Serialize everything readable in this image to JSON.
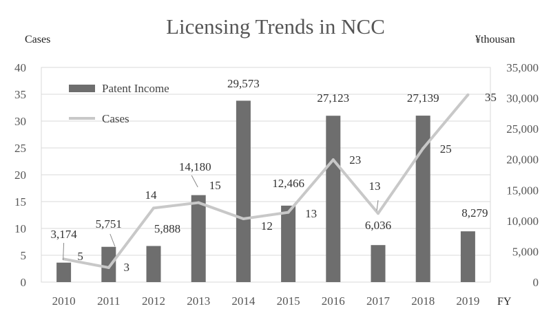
{
  "chart_data": {
    "type": "bar",
    "title": "Licensing Trends in NCC",
    "left_unit": "Cases",
    "right_unit": "¥thousan",
    "x_unit": "FY",
    "categories": [
      "2010",
      "2011",
      "2012",
      "2013",
      "2014",
      "2015",
      "2016",
      "2017",
      "2018",
      "2019"
    ],
    "left_axis": {
      "range": [
        0,
        40
      ],
      "ticks": [
        "0",
        "5",
        "10",
        "15",
        "20",
        "25",
        "30",
        "35",
        "40"
      ]
    },
    "right_axis": {
      "range": [
        0,
        35000
      ],
      "ticks": [
        "0",
        "5,000",
        "10,000",
        "15,000",
        "20,000",
        "25,000",
        "30,000",
        "35,000"
      ]
    },
    "grid": true,
    "legend_position": "top-left",
    "series": [
      {
        "name": "Patent Income",
        "type": "bar",
        "axis": "right",
        "color": "#6e6e6e",
        "values": [
          3174,
          5751,
          5888,
          14180,
          29573,
          12466,
          27123,
          6036,
          27139,
          8279
        ],
        "labels": [
          "3,174",
          "5,751",
          "5,888",
          "14,180",
          "29,573",
          "12,466",
          "27,123",
          "6,036",
          "27,139",
          "8,279"
        ]
      },
      {
        "name": "Cases",
        "type": "line",
        "axis": "left",
        "color": "#c8c8c8",
        "values": [
          5,
          3,
          14,
          15,
          12,
          13,
          23,
          13,
          25,
          35
        ],
        "plotted_values": [
          4.3,
          2.7,
          13.8,
          14.8,
          11.8,
          13.0,
          22.8,
          12.8,
          24.9,
          34.9
        ],
        "labels": [
          "5",
          "3",
          "14",
          "15",
          "12",
          "13",
          "23",
          "13",
          "25",
          "35"
        ]
      }
    ]
  }
}
